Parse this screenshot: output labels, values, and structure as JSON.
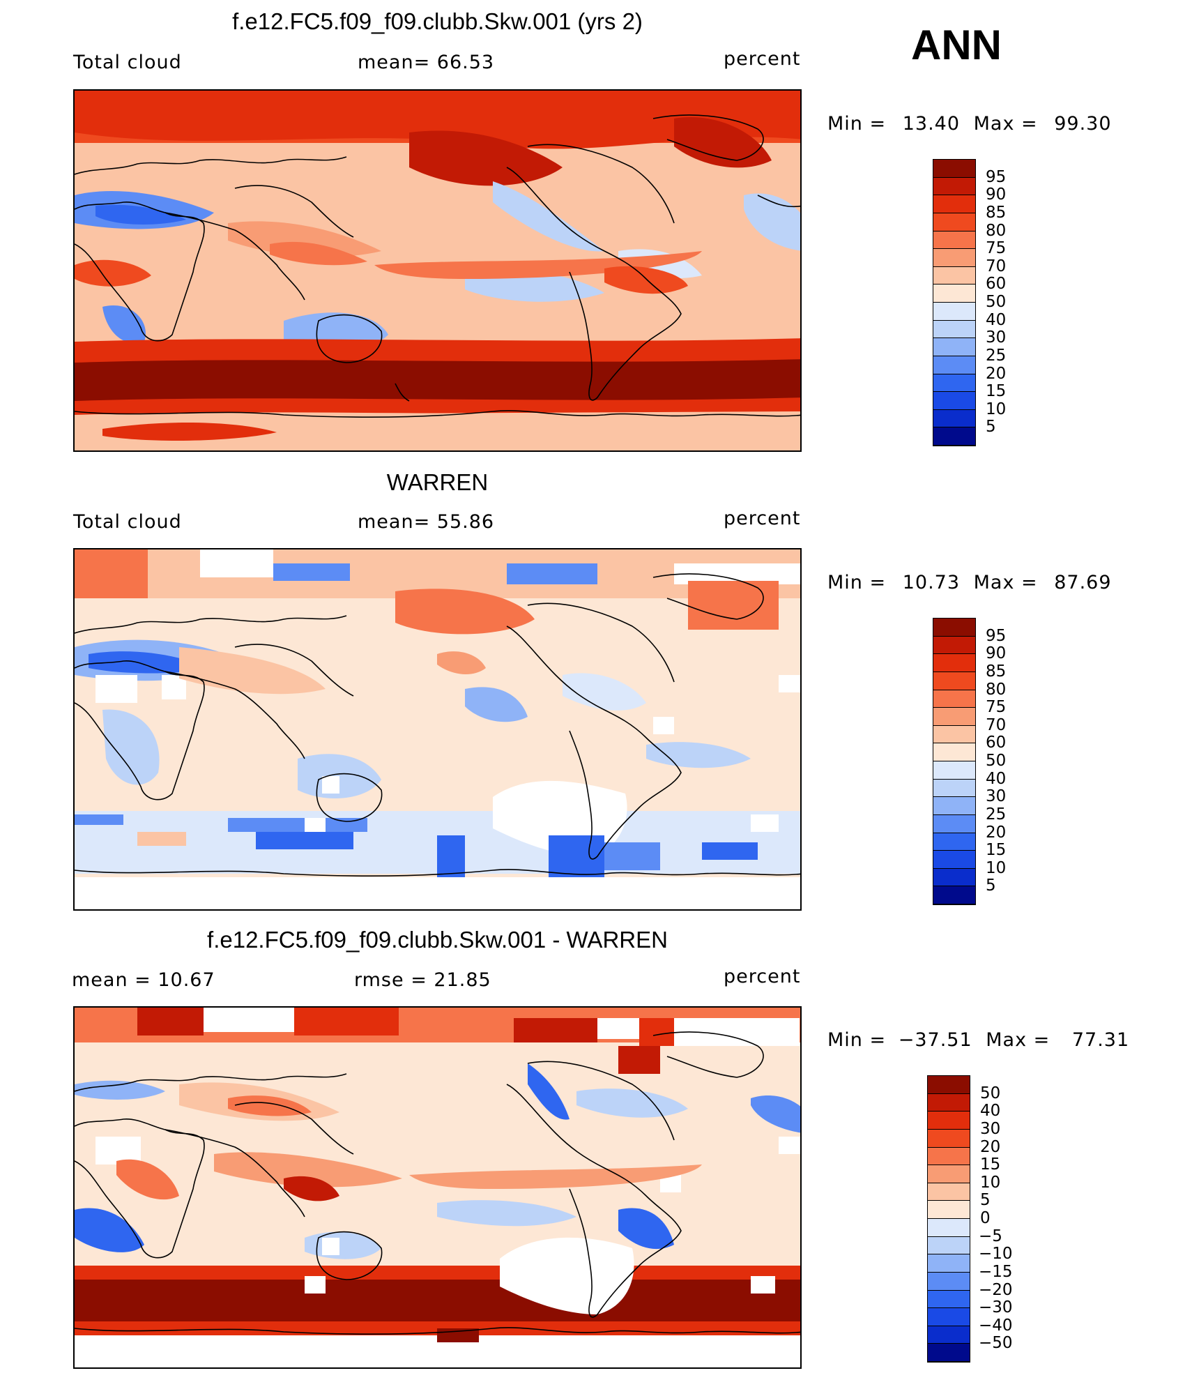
{
  "season_label": "ANN",
  "palette": [
    "#000a8c",
    "#0a2dcc",
    "#1a4ae6",
    "#2f66f0",
    "#5c8cf5",
    "#8fb3f7",
    "#bcd3f8",
    "#dce8fb",
    "#fde7d5",
    "#fbc4a4",
    "#f89c74",
    "#f6744a",
    "#ef4a1f",
    "#e22e0c",
    "#c21a05",
    "#8b0d00"
  ],
  "panels": [
    {
      "title": "f.e12.FC5.f09_f09.clubb.Skw.001 (yrs 2)",
      "left_label": "Total cloud",
      "mid_label": "mean=   66.53",
      "units": "percent",
      "min_label": "Min  =",
      "min_value": "13.40",
      "max_label": "Max  =",
      "max_value": "99.30",
      "colorbar_ticks": [
        "95",
        "90",
        "85",
        "80",
        "75",
        "70",
        "60",
        "50",
        "40",
        "30",
        "25",
        "20",
        "15",
        "10",
        "5"
      ]
    },
    {
      "title": "WARREN",
      "left_label": "Total cloud",
      "mid_label": "mean=   55.86",
      "units": "percent",
      "min_label": "Min  =",
      "min_value": "10.73",
      "max_label": "Max  =",
      "max_value": "87.69",
      "colorbar_ticks": [
        "95",
        "90",
        "85",
        "80",
        "75",
        "70",
        "60",
        "50",
        "40",
        "30",
        "25",
        "20",
        "15",
        "10",
        "5"
      ]
    },
    {
      "title": "f.e12.FC5.f09_f09.clubb.Skw.001 - WARREN",
      "left_label": "mean  =    10.67",
      "mid_label": "rmse  =    21.85",
      "units": "percent",
      "min_label": "Min  =",
      "min_value": "−37.51",
      "max_label": "Max  =",
      "max_value": "77.31",
      "colorbar_ticks": [
        "50",
        "40",
        "30",
        "20",
        "15",
        "10",
        "5",
        "0",
        "−5",
        "−10",
        "−15",
        "−20",
        "−30",
        "−40",
        "−50"
      ]
    }
  ]
}
